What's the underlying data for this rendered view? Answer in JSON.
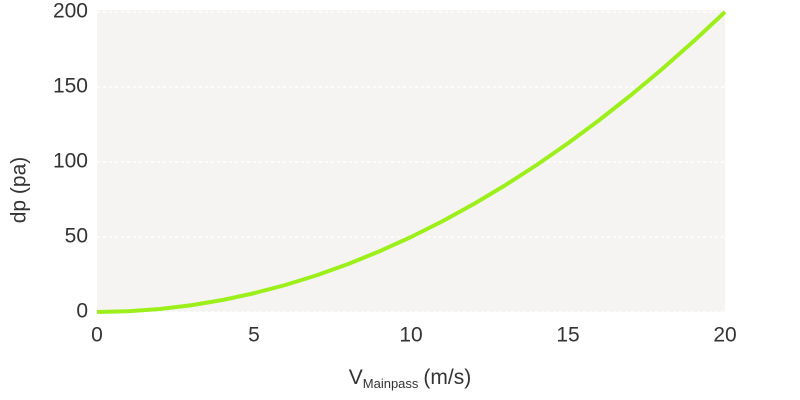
{
  "chart_data": {
    "type": "line",
    "x_label": {
      "main": "V",
      "sub": "Mainpass",
      "unit": "(m/s)"
    },
    "y_label": "dp (pa)",
    "x": [
      0,
      1,
      2,
      3,
      4,
      5,
      6,
      7,
      8,
      9,
      10,
      11,
      12,
      13,
      14,
      15,
      16,
      17,
      18,
      19,
      20
    ],
    "series": [
      {
        "name": "dp",
        "color": "#9def1c",
        "values": [
          0,
          0.5,
          2,
          4.5,
          8,
          12.5,
          18,
          24.5,
          32,
          40.5,
          50,
          60.5,
          72,
          84.5,
          98,
          112.5,
          128,
          144.5,
          162,
          180.5,
          200
        ]
      }
    ],
    "xlim": [
      0,
      20
    ],
    "xticks": [
      0,
      5,
      10,
      15,
      20
    ],
    "ylim": [
      0,
      200
    ],
    "yticks": [
      0,
      50,
      100,
      150,
      200
    ],
    "grid": true
  }
}
